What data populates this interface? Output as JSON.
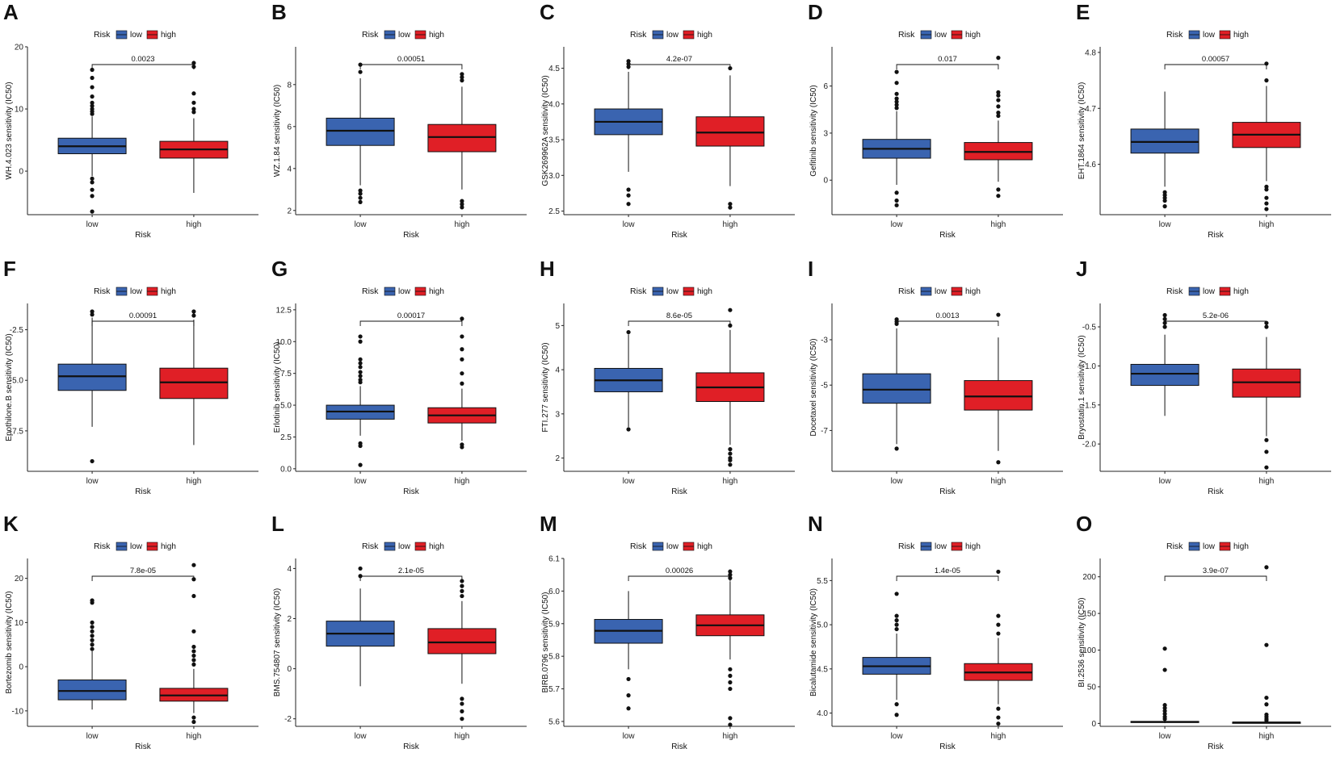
{
  "legend": {
    "title": "Risk",
    "labels": [
      "low",
      "high"
    ]
  },
  "colors": {
    "low": "#3a64b0",
    "high": "#e01f26",
    "axis": "#222222",
    "median": "#111111",
    "point": "#111111"
  },
  "chart_data": [
    {
      "panel": "A",
      "type": "box",
      "ylabel": "WH.4.023 sensitivity (IC50)",
      "xlabel": "Risk",
      "categories": [
        "low",
        "high"
      ],
      "ylim": [
        -7,
        20
      ],
      "yticks": [
        0,
        10,
        20
      ],
      "pvalue": "0.0023",
      "groups": [
        {
          "name": "low",
          "q1": 2.8,
          "median": 4.0,
          "q3": 5.3,
          "whisker_low": -0.8,
          "whisker_high": 8.8,
          "outliers": [
            9.2,
            9.6,
            10.0,
            10.5,
            11.0,
            12.0,
            13.5,
            15.0,
            16.3,
            -1.2,
            -1.8,
            -3.0,
            -4.0,
            -6.5
          ]
        },
        {
          "name": "high",
          "q1": 2.1,
          "median": 3.5,
          "q3": 4.8,
          "whisker_low": -3.5,
          "whisker_high": 8.5,
          "outliers": [
            9.5,
            10.0,
            11.0,
            12.5,
            16.8,
            17.4
          ]
        }
      ]
    },
    {
      "panel": "B",
      "type": "box",
      "ylabel": "WZ.1.84 sensitivity (IC50)",
      "xlabel": "Risk",
      "categories": [
        "low",
        "high"
      ],
      "ylim": [
        1.8,
        9.8
      ],
      "yticks": [
        2,
        4,
        6,
        8
      ],
      "pvalue": "0.00051",
      "groups": [
        {
          "name": "low",
          "q1": 5.1,
          "median": 5.8,
          "q3": 6.4,
          "whisker_low": 3.2,
          "whisker_high": 8.3,
          "outliers": [
            2.4,
            2.6,
            2.8,
            2.95,
            8.6,
            8.95
          ]
        },
        {
          "name": "high",
          "q1": 4.8,
          "median": 5.5,
          "q3": 6.1,
          "whisker_low": 3.0,
          "whisker_high": 7.9,
          "outliers": [
            2.15,
            2.3,
            2.45,
            8.2,
            8.35,
            8.5
          ]
        }
      ]
    },
    {
      "panel": "C",
      "type": "box",
      "ylabel": "GSK269962A sensitivity (IC50)",
      "xlabel": "Risk",
      "categories": [
        "low",
        "high"
      ],
      "ylim": [
        2.45,
        4.8
      ],
      "yticks": [
        2.5,
        3.0,
        3.5,
        4.0,
        4.5
      ],
      "pvalue": "4.2e-07",
      "groups": [
        {
          "name": "low",
          "q1": 3.57,
          "median": 3.75,
          "q3": 3.93,
          "whisker_low": 3.05,
          "whisker_high": 4.45,
          "outliers": [
            2.6,
            2.72,
            2.8,
            4.52,
            4.56,
            4.6
          ]
        },
        {
          "name": "high",
          "q1": 3.41,
          "median": 3.6,
          "q3": 3.82,
          "whisker_low": 2.85,
          "whisker_high": 4.4,
          "outliers": [
            2.55,
            2.6,
            4.5
          ]
        }
      ]
    },
    {
      "panel": "D",
      "type": "box",
      "ylabel": "Gefitinib sensitivity (IC50)",
      "xlabel": "Risk",
      "categories": [
        "low",
        "high"
      ],
      "ylim": [
        -2.2,
        8.5
      ],
      "yticks": [
        0,
        3,
        6
      ],
      "pvalue": "0.017",
      "groups": [
        {
          "name": "low",
          "q1": 1.4,
          "median": 2.0,
          "q3": 2.6,
          "whisker_low": -0.3,
          "whisker_high": 4.4,
          "outliers": [
            4.6,
            4.8,
            5.0,
            5.2,
            5.5,
            6.2,
            6.9,
            -0.8,
            -1.3,
            -1.6
          ]
        },
        {
          "name": "high",
          "q1": 1.3,
          "median": 1.8,
          "q3": 2.4,
          "whisker_low": -0.1,
          "whisker_high": 3.8,
          "outliers": [
            4.1,
            4.3,
            4.7,
            5.1,
            5.4,
            5.6,
            7.8,
            -0.6,
            -1.0
          ]
        }
      ]
    },
    {
      "panel": "E",
      "type": "box",
      "ylabel": "EHT.1864 sensitivity (IC50)",
      "xlabel": "Risk",
      "categories": [
        "low",
        "high"
      ],
      "ylim": [
        4.51,
        4.81
      ],
      "yticks": [
        4.6,
        4.7,
        4.8
      ],
      "pvalue": "0.00057",
      "groups": [
        {
          "name": "low",
          "q1": 4.62,
          "median": 4.64,
          "q3": 4.663,
          "whisker_low": 4.56,
          "whisker_high": 4.73,
          "outliers": [
            4.525,
            4.535,
            4.54,
            4.545,
            4.55
          ]
        },
        {
          "name": "high",
          "q1": 4.63,
          "median": 4.653,
          "q3": 4.675,
          "whisker_low": 4.57,
          "whisker_high": 4.74,
          "outliers": [
            4.75,
            4.78,
            4.52,
            4.53,
            4.54,
            4.555,
            4.56
          ]
        }
      ]
    },
    {
      "panel": "F",
      "type": "box",
      "ylabel": "Epothilone.B sensitivity (IC50)",
      "xlabel": "Risk",
      "categories": [
        "low",
        "high"
      ],
      "ylim": [
        -9.5,
        -1.2
      ],
      "yticks": [
        -7.5,
        -5.0,
        -2.5
      ],
      "pvalue": "0.00091",
      "groups": [
        {
          "name": "low",
          "q1": -5.5,
          "median": -4.8,
          "q3": -4.2,
          "whisker_low": -7.3,
          "whisker_high": -1.9,
          "outliers": [
            -1.6,
            -1.75,
            -9.0
          ]
        },
        {
          "name": "high",
          "q1": -5.9,
          "median": -5.1,
          "q3": -4.4,
          "whisker_low": -8.2,
          "whisker_high": -2.0,
          "outliers": [
            -1.6,
            -1.8
          ]
        }
      ]
    },
    {
      "panel": "G",
      "type": "box",
      "ylabel": "Erlotinib sensitivity (IC50)",
      "xlabel": "Risk",
      "categories": [
        "low",
        "high"
      ],
      "ylim": [
        -0.2,
        13.0
      ],
      "yticks": [
        0.0,
        2.5,
        5.0,
        7.5,
        10.0,
        12.5
      ],
      "pvalue": "0.00017",
      "groups": [
        {
          "name": "low",
          "q1": 3.9,
          "median": 4.5,
          "q3": 5.0,
          "whisker_low": 2.6,
          "whisker_high": 6.5,
          "outliers": [
            6.8,
            7.0,
            7.3,
            7.6,
            8.0,
            8.3,
            8.6,
            10.0,
            10.4,
            2.0,
            1.8,
            0.3
          ]
        },
        {
          "name": "high",
          "q1": 3.6,
          "median": 4.2,
          "q3": 4.8,
          "whisker_low": 2.2,
          "whisker_high": 6.3,
          "outliers": [
            6.7,
            7.5,
            8.6,
            9.4,
            10.4,
            11.8,
            1.7,
            1.9
          ]
        }
      ]
    },
    {
      "panel": "H",
      "type": "box",
      "ylabel": "FTI.277 sensitivity (IC50)",
      "xlabel": "Risk",
      "categories": [
        "low",
        "high"
      ],
      "ylim": [
        1.7,
        5.5
      ],
      "yticks": [
        2,
        3,
        4,
        5
      ],
      "pvalue": "8.6e-05",
      "groups": [
        {
          "name": "low",
          "q1": 3.5,
          "median": 3.76,
          "q3": 4.03,
          "whisker_low": 2.7,
          "whisker_high": 4.8,
          "outliers": [
            4.85,
            2.65
          ]
        },
        {
          "name": "high",
          "q1": 3.28,
          "median": 3.6,
          "q3": 3.93,
          "whisker_low": 2.3,
          "whisker_high": 4.9,
          "outliers": [
            5.0,
            5.35,
            2.2,
            2.0,
            1.85,
            1.95,
            2.1
          ]
        }
      ]
    },
    {
      "panel": "I",
      "type": "box",
      "ylabel": "Docetaxel sensitivity (IC50)",
      "xlabel": "Risk",
      "categories": [
        "low",
        "high"
      ],
      "ylim": [
        -8.8,
        -1.4
      ],
      "yticks": [
        -7,
        -5,
        -3
      ],
      "pvalue": "0.0013",
      "groups": [
        {
          "name": "low",
          "q1": -5.8,
          "median": -5.2,
          "q3": -4.5,
          "whisker_low": -7.6,
          "whisker_high": -2.5,
          "outliers": [
            -2.1,
            -2.2,
            -2.3,
            -7.8
          ]
        },
        {
          "name": "high",
          "q1": -6.1,
          "median": -5.5,
          "q3": -4.8,
          "whisker_low": -7.9,
          "whisker_high": -2.9,
          "outliers": [
            -1.9,
            -8.4
          ]
        }
      ]
    },
    {
      "panel": "J",
      "type": "box",
      "ylabel": "Bryostatin.1 sensitivity (IC50)",
      "xlabel": "Risk",
      "categories": [
        "low",
        "high"
      ],
      "ylim": [
        -2.35,
        -0.2
      ],
      "yticks": [
        -2.0,
        -1.5,
        -1.0,
        -0.5
      ],
      "pvalue": "5.2e-06",
      "groups": [
        {
          "name": "low",
          "q1": -1.25,
          "median": -1.1,
          "q3": -0.98,
          "whisker_low": -1.64,
          "whisker_high": -0.6,
          "outliers": [
            -0.5,
            -0.45,
            -0.4,
            -0.35
          ]
        },
        {
          "name": "high",
          "q1": -1.4,
          "median": -1.21,
          "q3": -1.04,
          "whisker_low": -1.9,
          "whisker_high": -0.63,
          "outliers": [
            -0.5,
            -0.45,
            -1.95,
            -2.1,
            -2.3
          ]
        }
      ]
    },
    {
      "panel": "K",
      "type": "box",
      "ylabel": "Bortezomib sensitivity (IC50)",
      "xlabel": "Risk",
      "categories": [
        "low",
        "high"
      ],
      "ylim": [
        -13.5,
        24.5
      ],
      "yticks": [
        -10,
        0,
        10,
        20
      ],
      "pvalue": "7.8e-05",
      "groups": [
        {
          "name": "low",
          "q1": -7.5,
          "median": -5.5,
          "q3": -3.0,
          "whisker_low": -9.7,
          "whisker_high": 3.5,
          "outliers": [
            4.0,
            5.0,
            6.0,
            7.0,
            8.0,
            9.0,
            10.0,
            14.5,
            15.0
          ]
        },
        {
          "name": "high",
          "q1": -7.8,
          "median": -6.5,
          "q3": -4.9,
          "whisker_low": -10.5,
          "whisker_high": -0.5,
          "outliers": [
            0.5,
            1.5,
            2.5,
            3.5,
            4.5,
            8.0,
            16.0,
            19.8,
            23.0,
            -11.5,
            -12.5
          ]
        }
      ]
    },
    {
      "panel": "L",
      "type": "box",
      "ylabel": "BMS.754807 sensitivity (IC50)",
      "xlabel": "Risk",
      "categories": [
        "low",
        "high"
      ],
      "ylim": [
        -2.3,
        4.4
      ],
      "yticks": [
        -2,
        0,
        2,
        4
      ],
      "pvalue": "2.1e-05",
      "groups": [
        {
          "name": "low",
          "q1": 0.9,
          "median": 1.4,
          "q3": 1.9,
          "whisker_low": -0.7,
          "whisker_high": 3.2,
          "outliers": [
            3.7,
            4.0
          ]
        },
        {
          "name": "high",
          "q1": 0.6,
          "median": 1.05,
          "q3": 1.6,
          "whisker_low": -0.6,
          "whisker_high": 2.7,
          "outliers": [
            2.9,
            3.1,
            3.3,
            3.5,
            -1.2,
            -1.4,
            -1.7,
            -2.0
          ]
        }
      ]
    },
    {
      "panel": "M",
      "type": "box",
      "ylabel": "BIRB.0796 sensitivity (IC50)",
      "xlabel": "Risk",
      "categories": [
        "low",
        "high"
      ],
      "ylim": [
        5.585,
        6.1
      ],
      "yticks": [
        5.6,
        5.7,
        5.8,
        5.9,
        6.0,
        6.1
      ],
      "pvalue": "0.00026",
      "groups": [
        {
          "name": "low",
          "q1": 5.84,
          "median": 5.878,
          "q3": 5.913,
          "whisker_low": 5.76,
          "whisker_high": 6.0,
          "outliers": [
            5.73,
            5.68,
            5.64
          ]
        },
        {
          "name": "high",
          "q1": 5.863,
          "median": 5.895,
          "q3": 5.927,
          "whisker_low": 5.79,
          "whisker_high": 6.03,
          "outliers": [
            6.04,
            6.05,
            6.06,
            5.76,
            5.74,
            5.72,
            5.7,
            5.61,
            5.59
          ]
        }
      ]
    },
    {
      "panel": "N",
      "type": "box",
      "ylabel": "Bicalutamide sensitivity (IC50)",
      "xlabel": "Risk",
      "categories": [
        "low",
        "high"
      ],
      "ylim": [
        3.85,
        5.75
      ],
      "yticks": [
        4.0,
        4.5,
        5.0,
        5.5
      ],
      "pvalue": "1.4e-05",
      "groups": [
        {
          "name": "low",
          "q1": 4.44,
          "median": 4.53,
          "q3": 4.63,
          "whisker_low": 4.15,
          "whisker_high": 4.9,
          "outliers": [
            4.95,
            5.0,
            5.05,
            5.1,
            5.35,
            4.1,
            3.98
          ]
        },
        {
          "name": "high",
          "q1": 4.37,
          "median": 4.46,
          "q3": 4.56,
          "whisker_low": 4.1,
          "whisker_high": 4.85,
          "outliers": [
            4.9,
            5.0,
            5.1,
            5.6,
            4.05,
            3.95,
            3.88
          ]
        }
      ]
    },
    {
      "panel": "O",
      "type": "box",
      "ylabel": "BI.2536 sensitivity (IC50)",
      "xlabel": "Risk",
      "categories": [
        "low",
        "high"
      ],
      "ylim": [
        -4,
        225
      ],
      "yticks": [
        0,
        50,
        100,
        150,
        200
      ],
      "pvalue": "3.9e-07",
      "groups": [
        {
          "name": "low",
          "q1": 1.2,
          "median": 2.0,
          "q3": 2.8,
          "whisker_low": 0.3,
          "whisker_high": 4.8,
          "outliers": [
            6,
            9,
            13,
            17,
            21,
            25,
            73,
            102
          ]
        },
        {
          "name": "high",
          "q1": 0.8,
          "median": 1.2,
          "q3": 1.7,
          "whisker_low": 0.2,
          "whisker_high": 3.0,
          "outliers": [
            4,
            6,
            9,
            12,
            26,
            35,
            107,
            213
          ]
        }
      ]
    }
  ]
}
